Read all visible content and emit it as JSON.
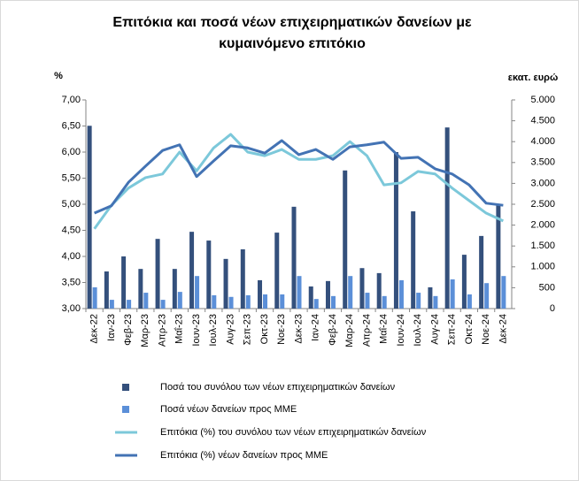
{
  "chart_data": {
    "type": "combo",
    "title": "Επιτόκια και ποσά νέων επιχειρηματικών δανείων με κυμαινόμενο επιτόκιο",
    "ylabel": "%",
    "y2label": "εκατ. ευρώ",
    "categories": [
      "Δεκ-22",
      "Ιαν-23",
      "Φεβ-23",
      "Μαρ-23",
      "Απρ-23",
      "Μαΐ-23",
      "Ιουν-23",
      "Ιουλ-23",
      "Αυγ-23",
      "Σεπ-23",
      "Οκτ-23",
      "Νοε-23",
      "Δεκ-23",
      "Ιαν-24",
      "Φεβ-24",
      "Μαρ-24",
      "Απρ-24",
      "Μαΐ-24",
      "Ιουν-24",
      "Ιουλ-24",
      "Αυγ-24",
      "Σεπ-24",
      "Οκτ-24",
      "Νοε-24",
      "Δεκ-24"
    ],
    "ylim": [
      3,
      7
    ],
    "yticks": [
      {
        "value": 3,
        "label": "3,00"
      },
      {
        "value": 3.5,
        "label": "3,50"
      },
      {
        "value": 4,
        "label": "4,00"
      },
      {
        "value": 4.5,
        "label": "4,50"
      },
      {
        "value": 5,
        "label": "5,00"
      },
      {
        "value": 5.5,
        "label": "5,50"
      },
      {
        "value": 6,
        "label": "6,00"
      },
      {
        "value": 6.5,
        "label": "6,50"
      },
      {
        "value": 7,
        "label": "7,00"
      }
    ],
    "y2lim": [
      0,
      5000
    ],
    "y2ticks": [
      0,
      500,
      {
        "value": 1000,
        "label": "1.000"
      },
      {
        "value": 1500,
        "label": "1.500"
      },
      {
        "value": 2000,
        "label": "2.000"
      },
      {
        "value": 2500,
        "label": "2.500"
      },
      {
        "value": 3000,
        "label": "3.000"
      },
      {
        "value": 3500,
        "label": "3.500"
      },
      {
        "value": 4000,
        "label": "4.000"
      },
      {
        "value": 4500,
        "label": "4.500"
      },
      {
        "value": 5000,
        "label": "5.000"
      }
    ],
    "series": [
      {
        "name": "Ποσά του συνόλου των νέων επιχειρηματικών δανείων",
        "type": "bar",
        "axis": "y2",
        "color": "#34507c",
        "values": [
          4380,
          890,
          1250,
          950,
          1670,
          950,
          1840,
          1630,
          1190,
          1420,
          680,
          1820,
          2440,
          530,
          660,
          3310,
          970,
          850,
          3750,
          2330,
          510,
          4340,
          1290,
          1740,
          2480
        ]
      },
      {
        "name": "Ποσά νέων δανείων προς ΜΜΕ",
        "type": "bar",
        "axis": "y2",
        "color": "#5b8fd8",
        "values": [
          510,
          210,
          210,
          380,
          210,
          400,
          780,
          320,
          280,
          320,
          340,
          340,
          780,
          230,
          300,
          780,
          380,
          300,
          680,
          380,
          300,
          700,
          340,
          610,
          780
        ]
      },
      {
        "name": "Επιτόκια (%) του συνόλου των νέων επιχειρηματικών δανείων",
        "type": "line",
        "axis": "y",
        "color": "#7cc8da",
        "values": [
          4.53,
          4.98,
          5.31,
          5.51,
          5.58,
          6.0,
          5.64,
          6.08,
          6.34,
          6.0,
          5.93,
          6.05,
          5.86,
          5.86,
          5.93,
          6.2,
          5.93,
          5.37,
          5.41,
          5.63,
          5.58,
          5.31,
          5.07,
          4.83,
          4.68
        ]
      },
      {
        "name": "Επιτόκια (%) νέων δανείων προς ΜΜΕ",
        "type": "line",
        "axis": "y",
        "color": "#4373b4",
        "values": [
          4.83,
          4.97,
          5.42,
          5.73,
          6.03,
          6.14,
          5.53,
          5.83,
          6.12,
          6.08,
          5.98,
          6.22,
          5.95,
          6.05,
          5.86,
          6.1,
          6.14,
          6.19,
          5.88,
          5.9,
          5.68,
          5.58,
          5.37,
          5.02,
          4.98
        ]
      }
    ]
  }
}
